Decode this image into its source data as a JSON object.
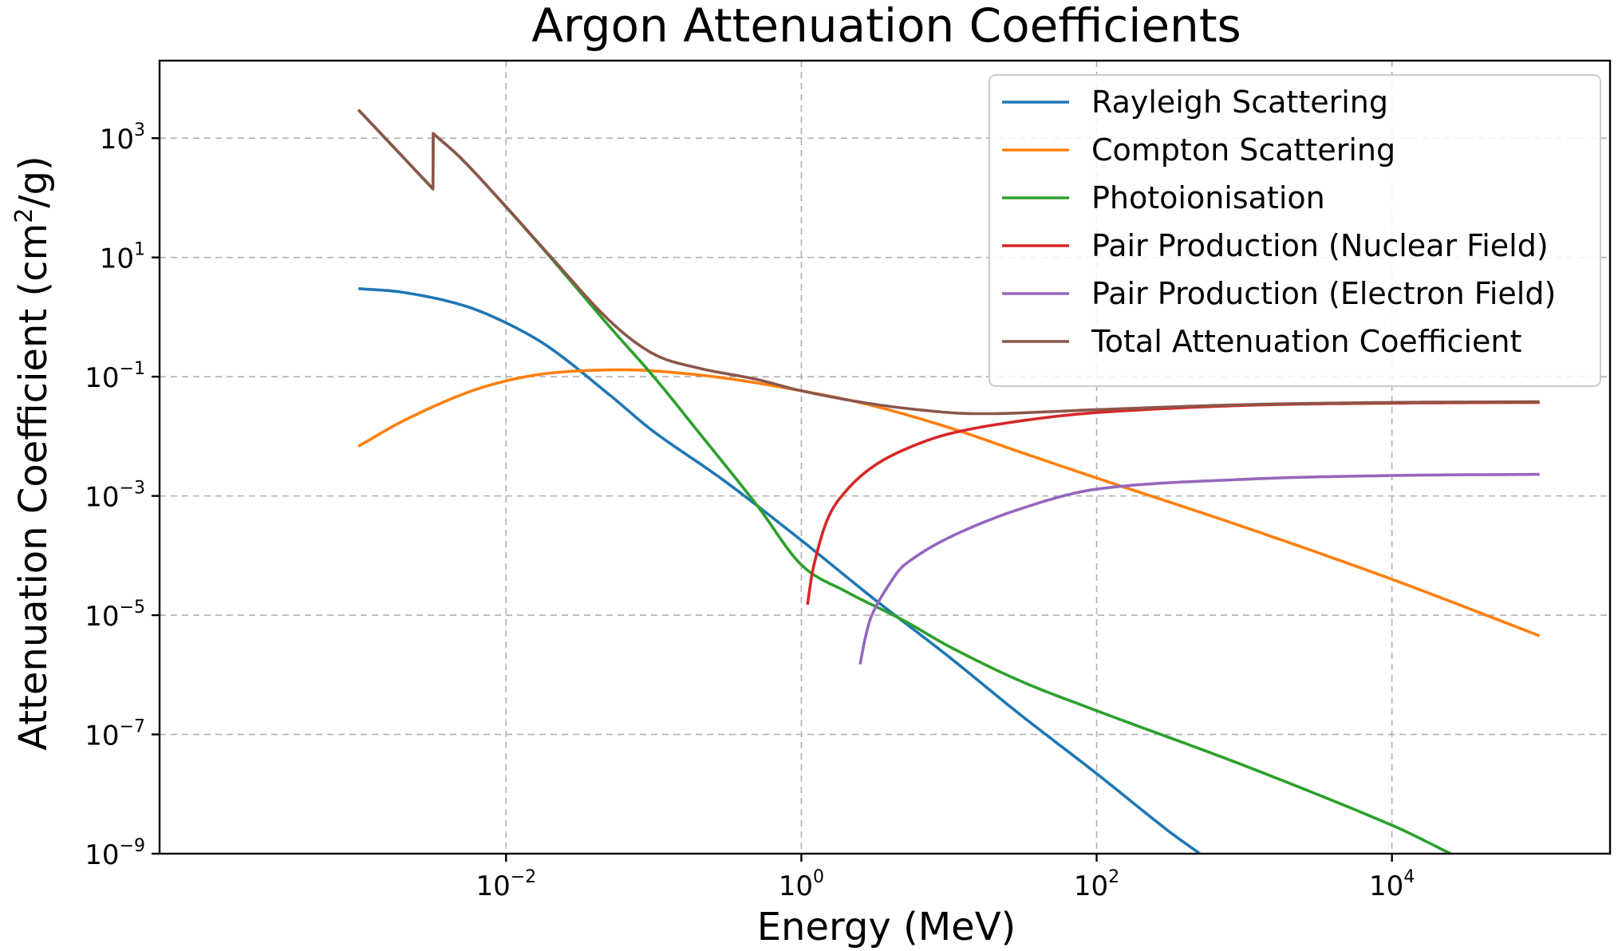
{
  "chart_data": {
    "type": "line",
    "title": "Argon Attenuation Coefficients",
    "xlabel": "Energy (MeV)",
    "ylabel": "Attenuation Coefficient (cm²/g)",
    "ylabel_parts": {
      "pre": "Attenuation Coefficient (cm",
      "sup": "2",
      "post": "/g)"
    },
    "xscale": "log",
    "yscale": "log",
    "xlim": [
      4.5e-05,
      300000
    ],
    "ylim": [
      1e-09,
      20000
    ],
    "grid": true,
    "legend_position": "top-right",
    "x_ticks": [
      {
        "value": 0.01,
        "base": "10",
        "exp": "−2"
      },
      {
        "value": 1,
        "base": "10",
        "exp": "0"
      },
      {
        "value": 100,
        "base": "10",
        "exp": "2"
      },
      {
        "value": 10000,
        "base": "10",
        "exp": "4"
      }
    ],
    "y_ticks": [
      {
        "value": 1e-09,
        "base": "10",
        "exp": "−9"
      },
      {
        "value": 1e-07,
        "base": "10",
        "exp": "−7"
      },
      {
        "value": 1e-05,
        "base": "10",
        "exp": "−5"
      },
      {
        "value": 0.001,
        "base": "10",
        "exp": "−3"
      },
      {
        "value": 0.1,
        "base": "10",
        "exp": "−1"
      },
      {
        "value": 10,
        "base": "10",
        "exp": "1"
      },
      {
        "value": 1000,
        "base": "10",
        "exp": "3"
      }
    ],
    "series": [
      {
        "name": "Rayleigh Scattering",
        "color": "#1f77b4",
        "points": [
          [
            0.001,
            3.0
          ],
          [
            0.002,
            2.6
          ],
          [
            0.005,
            1.6
          ],
          [
            0.01,
            0.8
          ],
          [
            0.02,
            0.3
          ],
          [
            0.05,
            0.05
          ],
          [
            0.1,
            0.012
          ],
          [
            0.3,
            0.0018
          ],
          [
            1,
            0.00018
          ],
          [
            3,
            2e-05
          ],
          [
            10,
            2e-06
          ],
          [
            30,
            2.2e-07
          ],
          [
            100,
            2.2e-08
          ],
          [
            300,
            2.5e-09
          ],
          [
            500,
            1e-09
          ]
        ]
      },
      {
        "name": "Compton Scattering",
        "color": "#ff7f0e",
        "points": [
          [
            0.001,
            0.0068
          ],
          [
            0.002,
            0.018
          ],
          [
            0.005,
            0.05
          ],
          [
            0.01,
            0.085
          ],
          [
            0.02,
            0.115
          ],
          [
            0.05,
            0.13
          ],
          [
            0.1,
            0.125
          ],
          [
            0.3,
            0.095
          ],
          [
            1,
            0.058
          ],
          [
            3,
            0.033
          ],
          [
            10,
            0.014
          ],
          [
            30,
            0.0055
          ],
          [
            100,
            0.002
          ],
          [
            1000,
            0.0003
          ],
          [
            10000,
            4e-05
          ],
          [
            100000,
            4.5e-06
          ]
        ]
      },
      {
        "name": "Photoionisation",
        "color": "#2ca02c",
        "points": [
          [
            0.001,
            3000
          ],
          [
            0.0032,
            140
          ],
          [
            0.00321,
            1200
          ],
          [
            0.005,
            450
          ],
          [
            0.01,
            70
          ],
          [
            0.02,
            10
          ],
          [
            0.05,
            0.7
          ],
          [
            0.1,
            0.1
          ],
          [
            0.2,
            0.012
          ],
          [
            0.5,
            0.0007
          ],
          [
            1,
            7e-05
          ],
          [
            2,
            2.5e-05
          ],
          [
            5,
            8e-06
          ],
          [
            10,
            3e-06
          ],
          [
            30,
            8e-07
          ],
          [
            100,
            2.5e-07
          ],
          [
            1000,
            3e-08
          ],
          [
            10000,
            3e-09
          ],
          [
            25000,
            1e-09
          ]
        ]
      },
      {
        "name": "Pair Production (Nuclear Field)",
        "color": "#d62728",
        "points": [
          [
            1.1,
            1.5e-05
          ],
          [
            1.2,
            6e-05
          ],
          [
            1.5,
            0.0004
          ],
          [
            2,
            0.0012
          ],
          [
            3,
            0.003
          ],
          [
            5,
            0.006
          ],
          [
            10,
            0.011
          ],
          [
            30,
            0.018
          ],
          [
            100,
            0.025
          ],
          [
            1000,
            0.033
          ],
          [
            10000,
            0.036
          ],
          [
            100000,
            0.037
          ]
        ]
      },
      {
        "name": "Pair Production (Electron Field)",
        "color": "#9467bd",
        "points": [
          [
            2.5,
            1.5e-06
          ],
          [
            2.7,
            4e-06
          ],
          [
            3,
            1e-05
          ],
          [
            4,
            3.5e-05
          ],
          [
            5,
            7e-05
          ],
          [
            10,
            0.0002
          ],
          [
            30,
            0.0006
          ],
          [
            100,
            0.0013
          ],
          [
            1000,
            0.0019
          ],
          [
            10000,
            0.0022
          ],
          [
            100000,
            0.0023
          ]
        ]
      },
      {
        "name": "Total Attenuation Coefficient",
        "color": "#8c564b",
        "points": [
          [
            0.001,
            3000
          ],
          [
            0.0032,
            142
          ],
          [
            0.00321,
            1200
          ],
          [
            0.005,
            450
          ],
          [
            0.01,
            71
          ],
          [
            0.02,
            10.4
          ],
          [
            0.05,
            0.88
          ],
          [
            0.1,
            0.24
          ],
          [
            0.2,
            0.14
          ],
          [
            0.5,
            0.09
          ],
          [
            1,
            0.058
          ],
          [
            3,
            0.035
          ],
          [
            10,
            0.025
          ],
          [
            20,
            0.024
          ],
          [
            50,
            0.026
          ],
          [
            100,
            0.028
          ],
          [
            1000,
            0.034
          ],
          [
            10000,
            0.037
          ],
          [
            100000,
            0.038
          ]
        ]
      }
    ]
  }
}
